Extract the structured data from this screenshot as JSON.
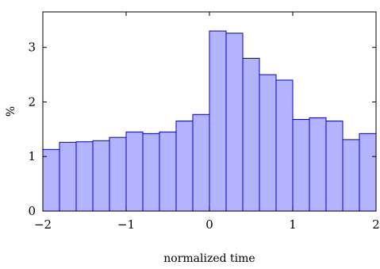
{
  "chart_data": {
    "type": "bar",
    "title": "",
    "xlabel": "normalized time",
    "ylabel": "%",
    "xlim": [
      -2,
      2
    ],
    "ylim": [
      0,
      3.65
    ],
    "xticks": [
      -2,
      -1,
      0,
      1,
      2
    ],
    "xtick_labels": [
      "−2",
      "−1",
      "0",
      "1",
      "2"
    ],
    "yticks": [
      0,
      1,
      2,
      3
    ],
    "ytick_labels": [
      "0",
      "1",
      "2",
      "3"
    ],
    "bin_width": 0.2,
    "bins_start": [
      -2.0,
      -1.8,
      -1.6,
      -1.4,
      -1.2,
      -1.0,
      -0.8,
      -0.6,
      -0.4,
      -0.2,
      0.0,
      0.2,
      0.4,
      0.6,
      0.8,
      1.0,
      1.2,
      1.4,
      1.6,
      1.8
    ],
    "values": [
      1.13,
      1.26,
      1.27,
      1.29,
      1.35,
      1.45,
      1.42,
      1.45,
      1.65,
      1.77,
      3.3,
      3.26,
      2.8,
      2.5,
      2.4,
      1.68,
      1.71,
      1.65,
      1.31,
      1.42
    ],
    "grid": false,
    "legend": "none",
    "bar_fill": "#b3b3ff",
    "bar_stroke": "#0000cc"
  }
}
